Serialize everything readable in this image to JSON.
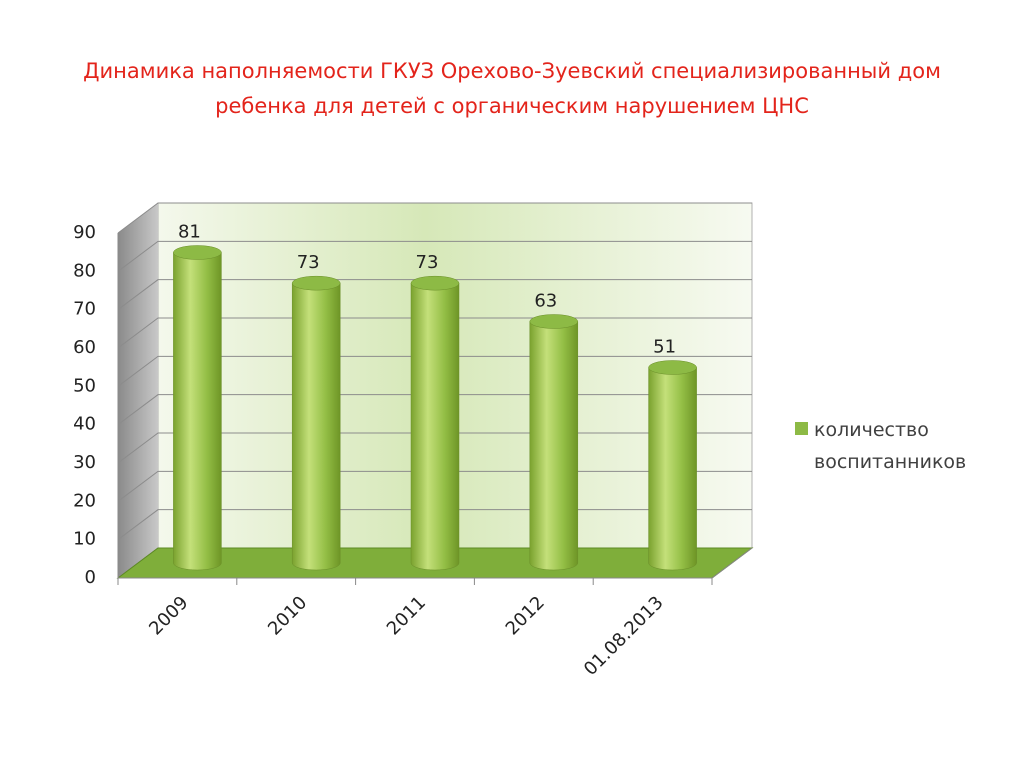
{
  "chart_data": {
    "type": "bar",
    "title": "Динамика наполняемости ГКУЗ Орехово-Зуевский специализированный дом ребенка для детей с органическим нарушением ЦНС",
    "categories": [
      "2009",
      "2010",
      "2011",
      "2012",
      "01.08.2013"
    ],
    "series": [
      {
        "name": "количество воспитанников",
        "color": "#8dba45",
        "values": [
          81,
          73,
          73,
          63,
          51
        ]
      }
    ],
    "ylim": [
      0,
      90
    ],
    "yticks": [
      0,
      10,
      20,
      30,
      40,
      50,
      60,
      70,
      80,
      90
    ],
    "grid": true,
    "legend": "right"
  }
}
